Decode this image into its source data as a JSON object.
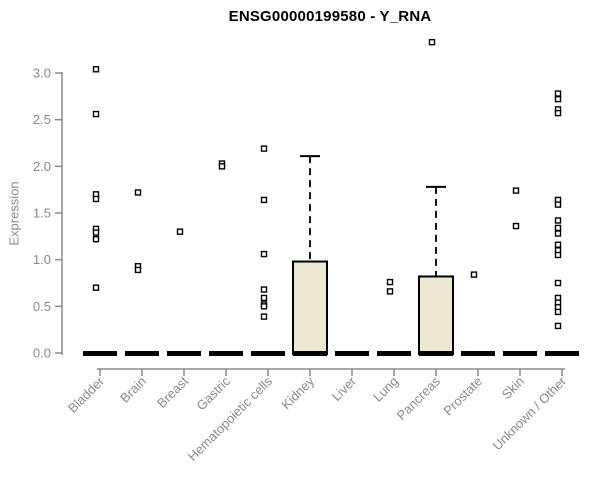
{
  "page": {
    "background": "#ffffff"
  },
  "chart_data": {
    "type": "boxplot",
    "title": "ENSG00000199580 - Y_RNA",
    "ylabel": "Expression",
    "xlabel": "",
    "ylim": [
      0,
      3.0
    ],
    "yticks": [
      0.0,
      0.5,
      1.0,
      1.5,
      2.0,
      2.5,
      3.0
    ],
    "grid": false,
    "legend": null,
    "style": {
      "axis_color": "#8a8a8a",
      "box_fill": "#ece8d2",
      "box_stroke": "#000000",
      "median_color": "#000000",
      "outlier_fill": "#ffffff",
      "outlier_stroke": "#000000"
    },
    "categories": [
      "Bladder",
      "Brain",
      "Breast",
      "Gastric",
      "Hematopoietic cells",
      "Kidney",
      "Liver",
      "Lung",
      "Pancreas",
      "Prostate",
      "Skin",
      "Unknown / Other"
    ],
    "series": [
      {
        "name": "Bladder",
        "q1": 0,
        "median": 0,
        "q3": 0,
        "whisker_high": null,
        "outliers": [
          3.04,
          2.56,
          1.7,
          1.65,
          1.33,
          1.29,
          1.22,
          0.7
        ]
      },
      {
        "name": "Brain",
        "q1": 0,
        "median": 0,
        "q3": 0,
        "whisker_high": null,
        "outliers": [
          1.72,
          0.93,
          0.89
        ]
      },
      {
        "name": "Breast",
        "q1": 0,
        "median": 0,
        "q3": 0,
        "whisker_high": null,
        "outliers": [
          1.3
        ]
      },
      {
        "name": "Gastric",
        "q1": 0,
        "median": 0,
        "q3": 0,
        "whisker_high": null,
        "outliers": [
          2.03,
          2.0
        ]
      },
      {
        "name": "Hematopoietic cells",
        "q1": 0,
        "median": 0,
        "q3": 0,
        "whisker_high": null,
        "outliers": [
          2.19,
          1.64,
          1.06,
          0.68,
          0.59,
          0.52,
          0.5,
          0.39
        ]
      },
      {
        "name": "Kidney",
        "q1": 0,
        "median": 0,
        "q3": 0.98,
        "whisker_high": 2.11,
        "outliers": []
      },
      {
        "name": "Liver",
        "q1": 0,
        "median": 0,
        "q3": 0,
        "whisker_high": null,
        "outliers": []
      },
      {
        "name": "Lung",
        "q1": 0,
        "median": 0,
        "q3": 0,
        "whisker_high": null,
        "outliers": [
          0.76,
          0.66
        ]
      },
      {
        "name": "Pancreas",
        "q1": 0,
        "median": 0,
        "q3": 0.82,
        "whisker_high": 1.78,
        "outliers": [
          3.33
        ]
      },
      {
        "name": "Prostate",
        "q1": 0,
        "median": 0,
        "q3": 0,
        "whisker_high": null,
        "outliers": [
          0.84
        ]
      },
      {
        "name": "Skin",
        "q1": 0,
        "median": 0,
        "q3": 0,
        "whisker_high": null,
        "outliers": [
          1.74,
          1.36
        ]
      },
      {
        "name": "Unknown / Other",
        "q1": 0,
        "median": 0,
        "q3": 0,
        "whisker_high": null,
        "outliers": [
          2.78,
          2.72,
          2.61,
          2.57,
          1.64,
          1.59,
          1.42,
          1.34,
          1.28,
          1.16,
          1.1,
          1.05,
          0.75,
          0.59,
          0.54,
          0.49,
          0.44,
          0.29
        ]
      }
    ]
  }
}
